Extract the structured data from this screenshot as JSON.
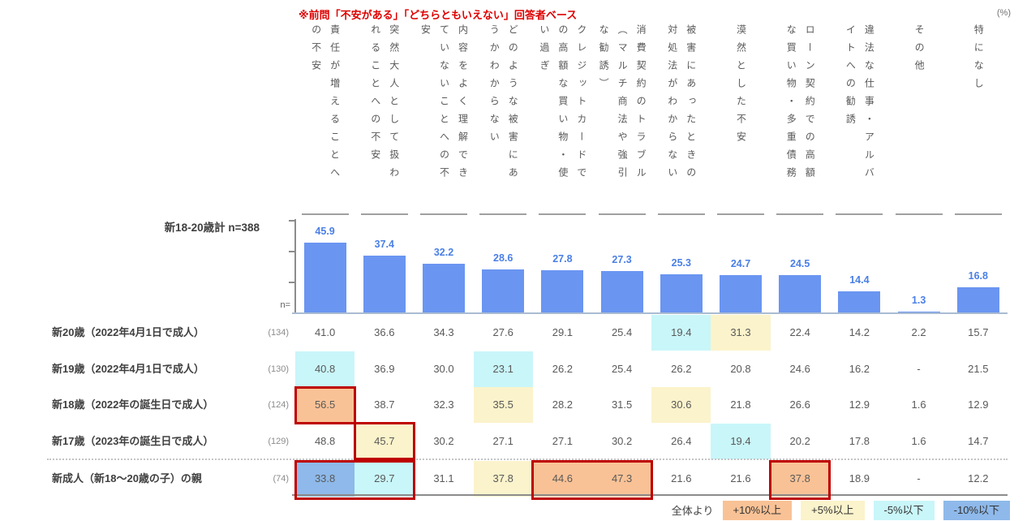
{
  "note": "※前問「不安がある」「どちらともいえない」回答者ベース",
  "unit_label": "(%)",
  "chart_data": {
    "type": "bar",
    "series_label": "新18-20歳計 n=388",
    "axis_prefix": "n=",
    "bar_color": "#6A95F1",
    "ylim": [
      0,
      62
    ],
    "yticks": [
      20,
      40,
      60
    ],
    "categories": [
      "責任が増えることへの不安",
      "突然大人として扱われることへの不安",
      "内容をよく理解できていないことへの不安",
      "どのような被害にあうかわからない",
      "クレジットカードでの高額な買い物・使い過ぎ",
      "消費契約のトラブル（マルチ商法や強引な勧誘）",
      "被害にあったときの対処法がわからない",
      "漠然とした不安",
      "ローン契約での高額な買い物・多重債務",
      "違法な仕事・アルバイトへの勧誘",
      "その他",
      "特になし"
    ],
    "category_lines": [
      [
        "責任が増えることへ",
        "の不安"
      ],
      [
        "突然大人として扱わ",
        "れることへの不安"
      ],
      [
        "内容をよく理解でき",
        "ていないことへの不",
        "安"
      ],
      [
        "どのような被害にあ",
        "うかわからない"
      ],
      [
        "クレジットカードで",
        "の高額な買い物・使",
        "い過ぎ"
      ],
      [
        "消費契約のトラブル",
        "（マルチ商法や強引",
        "な勧誘）"
      ],
      [
        "被害にあったときの",
        "対処法がわからない"
      ],
      [
        "漠然とした不安"
      ],
      [
        "ローン契約での高額",
        "な買い物・多重債務"
      ],
      [
        "違法な仕事・アルバ",
        "イトへの勧誘"
      ],
      [
        "その他"
      ],
      [
        "特になし"
      ]
    ],
    "values": [
      45.9,
      37.4,
      32.2,
      28.6,
      27.8,
      27.3,
      25.3,
      24.7,
      24.5,
      14.4,
      1.3,
      16.8
    ]
  },
  "highlight_colors": {
    "orange": "#F9C296",
    "yellow": "#FBF3CB",
    "cyan": "#C9F6F9",
    "blue": "#8EB9EA"
  },
  "table": {
    "rows": [
      {
        "label": "新20歳（2022年4月1日で成人）",
        "n": "(134)",
        "values": [
          "41.0",
          "36.6",
          "34.3",
          "27.6",
          "29.1",
          "25.4",
          "19.4",
          "31.3",
          "22.4",
          "14.2",
          "2.2",
          "15.7"
        ],
        "highlights": [
          null,
          null,
          null,
          null,
          null,
          null,
          "cyan",
          "yellow",
          null,
          null,
          null,
          null
        ]
      },
      {
        "label": "新19歳（2022年4月1日で成人）",
        "n": "(130)",
        "values": [
          "40.8",
          "36.9",
          "30.0",
          "23.1",
          "26.2",
          "25.4",
          "26.2",
          "20.8",
          "24.6",
          "16.2",
          "-",
          "21.5"
        ],
        "highlights": [
          "cyan",
          null,
          null,
          "cyan",
          null,
          null,
          null,
          null,
          null,
          null,
          null,
          null
        ]
      },
      {
        "label": "新18歳（2022年の誕生日で成人）",
        "n": "(124)",
        "values": [
          "56.5",
          "38.7",
          "32.3",
          "35.5",
          "28.2",
          "31.5",
          "30.6",
          "21.8",
          "26.6",
          "12.9",
          "1.6",
          "12.9"
        ],
        "highlights": [
          "orange",
          null,
          null,
          "yellow",
          null,
          null,
          "yellow",
          null,
          null,
          null,
          null,
          null
        ]
      },
      {
        "label": "新17歳（2023年の誕生日で成人）",
        "n": "(129)",
        "values": [
          "48.8",
          "45.7",
          "30.2",
          "27.1",
          "27.1",
          "30.2",
          "26.4",
          "19.4",
          "20.2",
          "17.8",
          "1.6",
          "14.7"
        ],
        "highlights": [
          null,
          "yellow",
          null,
          null,
          null,
          null,
          null,
          "cyan",
          null,
          null,
          null,
          null
        ]
      },
      {
        "label": "新成人（新18～20歳の子）の親",
        "n": "(74)",
        "values": [
          "33.8",
          "29.7",
          "31.1",
          "37.8",
          "44.6",
          "47.3",
          "21.6",
          "21.6",
          "37.8",
          "18.9",
          "-",
          "12.2"
        ],
        "highlights": [
          "blue",
          "cyan",
          null,
          "yellow",
          "orange",
          "orange",
          null,
          null,
          "orange",
          null,
          null,
          null
        ]
      }
    ]
  },
  "emphasis_boxes": [
    {
      "row": 2,
      "col_start": 0,
      "col_end": 0
    },
    {
      "row": 3,
      "col_start": 1,
      "col_end": 1
    },
    {
      "row": 4,
      "col_start": 0,
      "col_end": 1
    },
    {
      "row": 4,
      "col_start": 4,
      "col_end": 5
    },
    {
      "row": 4,
      "col_start": 8,
      "col_end": 8
    }
  ],
  "legend": {
    "prefix": "全体より",
    "items": [
      {
        "label": "+10%以上",
        "key": "orange"
      },
      {
        "label": "+5%以上",
        "key": "yellow"
      },
      {
        "label": "-5%以下",
        "key": "cyan"
      },
      {
        "label": "-10%以下",
        "key": "blue"
      }
    ]
  }
}
